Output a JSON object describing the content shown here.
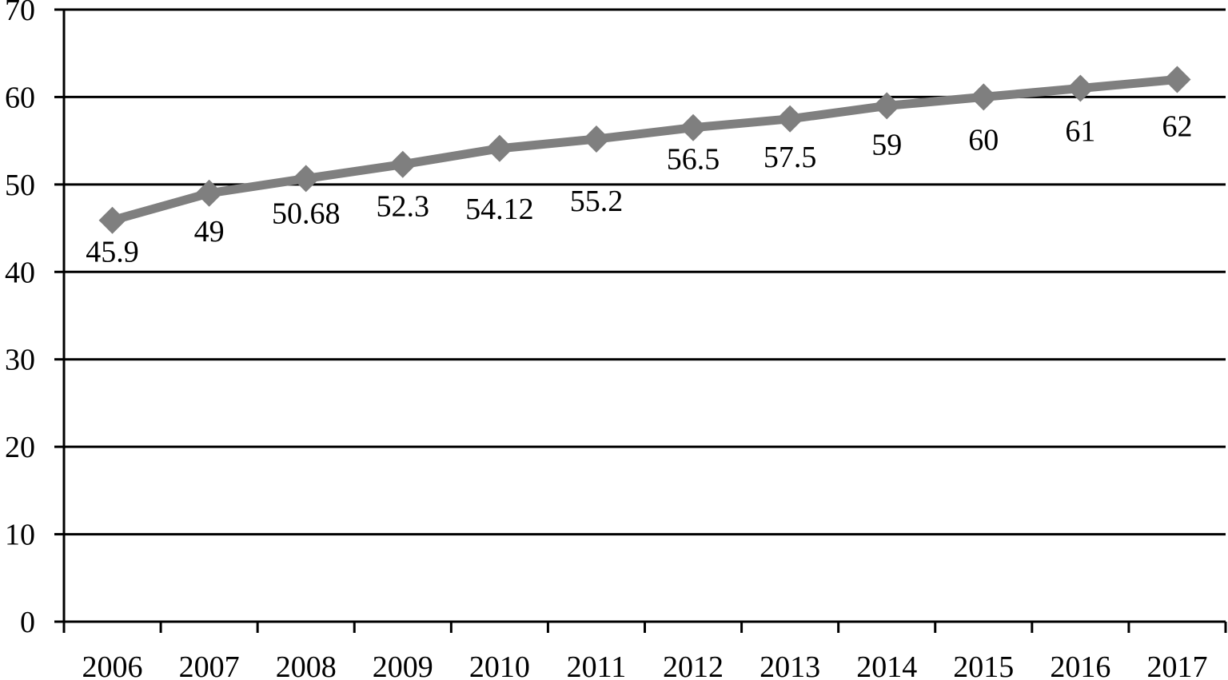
{
  "chart_data": {
    "type": "line",
    "title": "",
    "xlabel": "",
    "ylabel": "",
    "categories": [
      "2006",
      "2007",
      "2008",
      "2009",
      "2010",
      "2011",
      "2012",
      "2013",
      "2014",
      "2015",
      "2016",
      "2017"
    ],
    "series": [
      {
        "values": [
          45.9,
          49,
          50.68,
          52.3,
          54.12,
          55.2,
          56.5,
          57.5,
          59,
          60,
          61,
          62
        ]
      }
    ],
    "data_labels": [
      "45.9",
      "49",
      "50.68",
      "52.3",
      "54.12",
      "55.2",
      "56.5",
      "57.5",
      "59",
      "60",
      "61",
      "62"
    ],
    "ylim": [
      0,
      70
    ],
    "yticks": [
      "0",
      "10",
      "20",
      "30",
      "40",
      "50",
      "60",
      "70"
    ],
    "grid": true,
    "marker": "diamond",
    "line_color": "#7f7f7f",
    "grid_color": "#000000"
  }
}
